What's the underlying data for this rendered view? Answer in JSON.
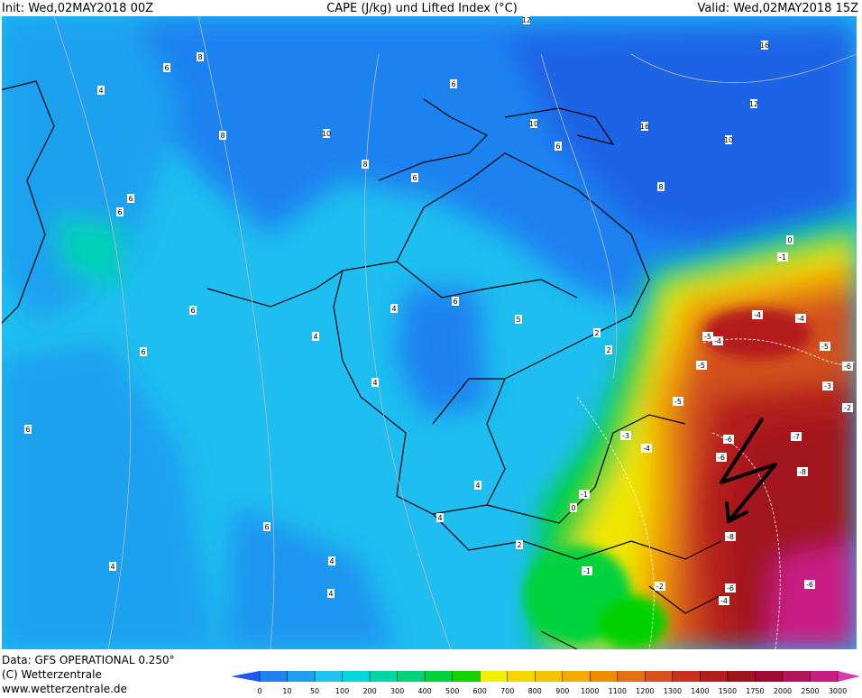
{
  "header": {
    "init": "Init: Wed,02MAY2018 00Z",
    "title": "CAPE (J/kg) und Lifted Index (°C)",
    "valid": "Valid: Wed,02MAY2018 15Z"
  },
  "footer": {
    "data": "Data: GFS OPERATIONAL 0.250°",
    "copyright": "(C) Wetterzentrale",
    "url": "www.wetterzentrale.de"
  },
  "colorbar": {
    "ticks": [
      0,
      10,
      50,
      100,
      200,
      300,
      400,
      500,
      600,
      700,
      800,
      900,
      1000,
      1100,
      1200,
      1300,
      1400,
      1500,
      1750,
      2000,
      2500,
      3000
    ],
    "colors": [
      "#1e5af0",
      "#1e82f0",
      "#1ea0f0",
      "#1ec3f0",
      "#00d7dc",
      "#00d7a5",
      "#00d278",
      "#00d23c",
      "#14d200",
      "#f0f000",
      "#f5d700",
      "#f5c300",
      "#f5aa00",
      "#f08c00",
      "#e66e14",
      "#d7501e",
      "#c8321e",
      "#b41e1e",
      "#a0141e",
      "#a00a32",
      "#b4145a",
      "#c81e82",
      "#dc3caa"
    ]
  },
  "contour_labels": [
    "4",
    "6",
    "8",
    "6",
    "8",
    "10",
    "6",
    "8",
    "10",
    "6",
    "6",
    "12",
    "16",
    "16",
    "12",
    "10",
    "8",
    "6",
    "4",
    "6",
    "4",
    "6",
    "4",
    "6",
    "5",
    "2",
    "2",
    "0",
    "-1",
    "-4",
    "-4",
    "-5",
    "-5",
    "-4",
    "-5",
    "-3",
    "-6",
    "-5",
    "-2",
    "-3",
    "-4",
    "-6",
    "-7",
    "-8",
    "-6",
    "-8",
    "-1",
    "0",
    "4",
    "4",
    "2",
    "-1",
    "-2",
    "-4",
    "6",
    "6",
    "4",
    "4",
    "4",
    "-6",
    "-6"
  ]
}
